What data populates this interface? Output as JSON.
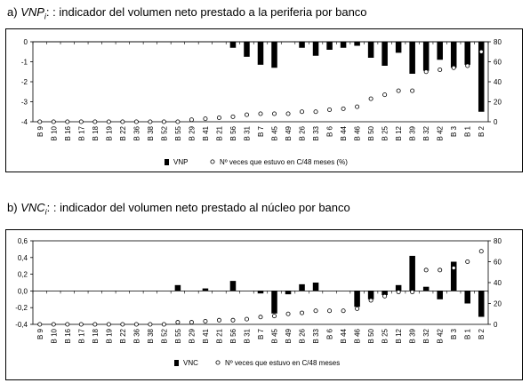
{
  "panels": {
    "a": {
      "letter": "a)",
      "var": "VNP",
      "sub": "i",
      "rest": ": : indicador del volumen neto prestado a la periferia por banco"
    },
    "b": {
      "letter": "b)",
      "var": "VNC",
      "sub": "i",
      "rest": ": : indicador del volumen neto prestado al núcleo por banco"
    }
  },
  "chart_data": [
    {
      "type": "bar",
      "id": "a",
      "categories": [
        "B 9",
        "B 10",
        "B 16",
        "B 17",
        "B 18",
        "B 19",
        "B 22",
        "B 36",
        "B 38",
        "B 52",
        "B 55",
        "B 29",
        "B 41",
        "B 21",
        "B 56",
        "B 31",
        "B 7",
        "B 45",
        "B 49",
        "B 26",
        "B 33",
        "B 6",
        "B 44",
        "B 46",
        "B 50",
        "B 25",
        "B 12",
        "B 39",
        "B 32",
        "B 42",
        "B 3",
        "B 1",
        "B 2"
      ],
      "series": [
        {
          "name": "VNP",
          "kind": "bar",
          "axis": "left",
          "values": [
            0,
            0,
            0,
            0,
            0,
            0,
            0,
            0,
            0,
            0,
            0,
            0,
            0,
            0,
            -0.3,
            -0.75,
            -1.15,
            -1.3,
            0,
            -0.3,
            -0.7,
            -0.4,
            -0.3,
            -0.2,
            -0.8,
            -1.2,
            -0.55,
            -1.6,
            -1.45,
            -0.9,
            -1.3,
            -1.15,
            -3.5
          ]
        },
        {
          "name": "Nº veces que estuvo en C/48 meses (%)",
          "kind": "scatter",
          "axis": "right",
          "values": [
            0,
            0,
            0,
            0,
            0,
            0,
            0,
            0,
            0,
            0,
            0,
            2,
            3,
            4,
            5,
            7,
            8,
            8,
            8,
            10,
            10,
            12,
            13,
            15,
            23,
            27,
            31,
            31,
            50,
            52,
            54,
            56,
            70
          ]
        }
      ],
      "ylim_left": [
        -4,
        0
      ],
      "yticks_left": [
        "0",
        "-1",
        "-2",
        "-3",
        "-4"
      ],
      "ylim_right": [
        0,
        80
      ],
      "yticks_right": [
        "80",
        "60",
        "40",
        "20",
        "0"
      ]
    },
    {
      "type": "bar",
      "id": "b",
      "categories": [
        "B 9",
        "B 10",
        "B 16",
        "B 17",
        "B 18",
        "B 19",
        "B 22",
        "B 36",
        "B 38",
        "B 52",
        "B 55",
        "B 29",
        "B 41",
        "B 21",
        "B 56",
        "B 31",
        "B 7",
        "B 45",
        "B 49",
        "B 26",
        "B 33",
        "B 6",
        "B 44",
        "B 46",
        "B 50",
        "B 25",
        "B 12",
        "B 39",
        "B 32",
        "B 42",
        "B 3",
        "B 1",
        "B 2"
      ],
      "series": [
        {
          "name": "VNC",
          "kind": "bar",
          "axis": "left",
          "values": [
            0,
            0,
            0,
            0,
            0,
            0,
            0,
            0,
            0,
            0,
            0.07,
            0,
            0.03,
            0,
            0.12,
            0,
            -0.03,
            -0.27,
            -0.04,
            0.08,
            0.1,
            0,
            0,
            -0.19,
            -0.1,
            -0.05,
            0.07,
            0.42,
            0.05,
            -0.1,
            0.35,
            -0.15,
            -0.31
          ]
        },
        {
          "name": "Nº veces que estuvo en C/48 meses",
          "kind": "scatter",
          "axis": "right",
          "values": [
            0,
            0,
            0,
            0,
            0,
            0,
            0,
            0,
            0,
            0,
            2,
            2,
            3,
            4,
            4,
            5,
            7,
            8,
            10,
            11,
            13,
            13,
            13,
            15,
            23,
            27,
            31,
            31,
            52,
            52,
            54,
            60,
            70
          ]
        }
      ],
      "ylim_left": [
        -0.4,
        0.6
      ],
      "yticks_left": [
        "0,6",
        "0,4",
        "0,2",
        "0,0",
        "-0,2",
        "-0,4"
      ],
      "ylim_right": [
        0,
        80
      ],
      "yticks_right": [
        "80",
        "60",
        "40",
        "20",
        "0"
      ]
    }
  ]
}
